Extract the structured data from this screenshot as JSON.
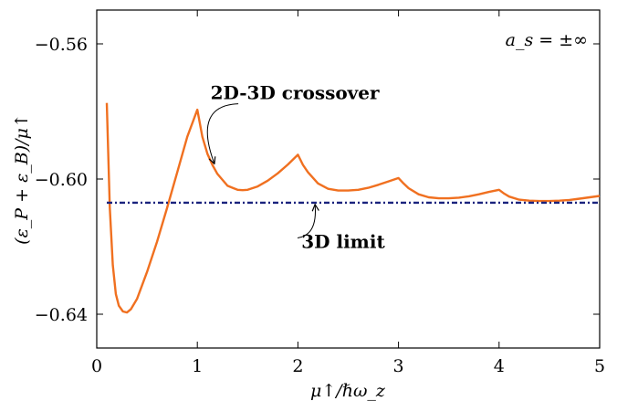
{
  "chart_data": {
    "type": "line",
    "title": "",
    "xlabel": "μ↑/ℏω_z",
    "ylabel": "(ε_P + ε_B)/μ↑",
    "xlim": [
      0,
      5
    ],
    "ylim": [
      -0.65,
      -0.55
    ],
    "x_ticks": [
      0,
      1,
      2,
      3,
      4,
      5
    ],
    "x_tick_labels": [
      "0",
      "1",
      "2",
      "3",
      "4",
      "5"
    ],
    "y_ticks": [
      -0.64,
      -0.6,
      -0.56
    ],
    "y_tick_labels": [
      "−0.64",
      "−0.60",
      "−0.56"
    ],
    "grid": false,
    "corner_label": "a_s = ±∞",
    "series": [
      {
        "color": "#f07020",
        "style": "solid",
        "x": [
          0.1,
          0.13,
          0.16,
          0.19,
          0.22,
          0.26,
          0.3,
          0.34,
          0.4,
          0.5,
          0.6,
          0.7,
          0.8,
          0.9,
          1.0,
          1.05,
          1.1,
          1.15,
          1.2,
          1.3,
          1.4,
          1.45,
          1.5,
          1.6,
          1.7,
          1.8,
          1.9,
          2.0,
          2.05,
          2.1,
          2.2,
          2.3,
          2.4,
          2.5,
          2.6,
          2.7,
          2.8,
          2.9,
          3.0,
          3.05,
          3.1,
          3.2,
          3.3,
          3.4,
          3.5,
          3.6,
          3.7,
          3.8,
          3.9,
          4.0,
          4.05,
          4.1,
          4.2,
          4.3,
          4.4,
          4.5,
          4.6,
          4.7,
          4.8,
          4.9,
          5.0
        ],
        "y": [
          -0.5775,
          -0.6085,
          -0.6255,
          -0.634,
          -0.6375,
          -0.6392,
          -0.6395,
          -0.6385,
          -0.6355,
          -0.6275,
          -0.6185,
          -0.6085,
          -0.598,
          -0.5875,
          -0.5795,
          -0.5875,
          -0.5925,
          -0.5958,
          -0.5985,
          -0.602,
          -0.6032,
          -0.6033,
          -0.6032,
          -0.6022,
          -0.6005,
          -0.5983,
          -0.5957,
          -0.5928,
          -0.5958,
          -0.598,
          -0.6013,
          -0.6029,
          -0.6034,
          -0.6034,
          -0.6032,
          -0.6026,
          -0.6017,
          -0.6007,
          -0.5997,
          -0.6013,
          -0.6027,
          -0.6045,
          -0.6054,
          -0.6057,
          -0.6057,
          -0.6055,
          -0.6051,
          -0.6045,
          -0.6038,
          -0.6032,
          -0.6043,
          -0.6052,
          -0.6061,
          -0.6064,
          -0.6065,
          -0.6065,
          -0.6064,
          -0.6062,
          -0.6058,
          -0.6054,
          -0.605
        ]
      },
      {
        "color": "#1a237e",
        "style": "dash-dot",
        "x": [
          0.1,
          5.0
        ],
        "y": [
          -0.607,
          -0.607
        ]
      }
    ],
    "annotations": [
      {
        "text": "2D-3D crossover",
        "x": 1.97,
        "y": -0.5745,
        "arrow_to": [
          1.17,
          -0.5955
        ]
      },
      {
        "text": "3D limit",
        "x": 2.45,
        "y": -0.6185,
        "arrow_to": [
          2.17,
          -0.6075
        ]
      }
    ]
  }
}
